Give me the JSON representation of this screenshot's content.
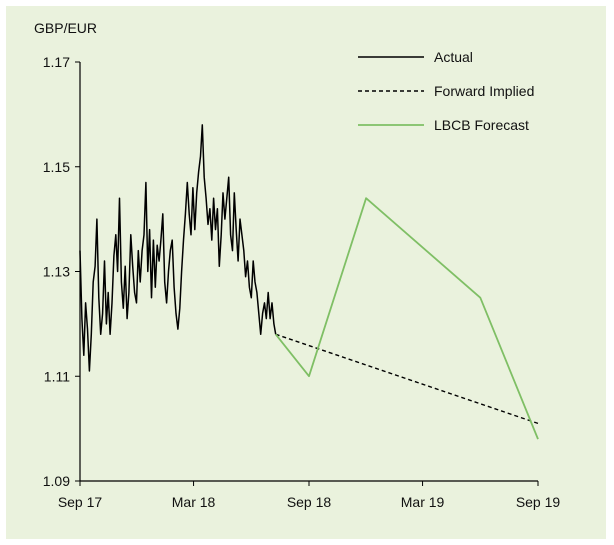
{
  "chart_data": {
    "type": "line",
    "title": "",
    "ylabel": "GBP/EUR",
    "xlabel": "",
    "ylim": [
      1.09,
      1.17
    ],
    "yticks": [
      "1.09",
      "1.11",
      "1.13",
      "1.15",
      "1.17"
    ],
    "xlim": [
      "2017-09-01",
      "2019-09-01"
    ],
    "xticks": [
      {
        "date": "2017-09-01",
        "label": "Sep 17"
      },
      {
        "date": "2018-03-01",
        "label": "Mar 18"
      },
      {
        "date": "2018-09-01",
        "label": "Sep 18"
      },
      {
        "date": "2019-03-01",
        "label": "Mar 19"
      },
      {
        "date": "2019-09-01",
        "label": "Sep 19"
      }
    ],
    "grid": false,
    "legend_position": "top-right",
    "series": [
      {
        "name": "Actual",
        "style": "solid",
        "color": "#000000",
        "points": [
          [
            "2017-09-01",
            1.134
          ],
          [
            "2017-09-04",
            1.121
          ],
          [
            "2017-09-07",
            1.114
          ],
          [
            "2017-09-10",
            1.124
          ],
          [
            "2017-09-13",
            1.119
          ],
          [
            "2017-09-16",
            1.111
          ],
          [
            "2017-09-19",
            1.118
          ],
          [
            "2017-09-22",
            1.128
          ],
          [
            "2017-09-25",
            1.131
          ],
          [
            "2017-09-28",
            1.14
          ],
          [
            "2017-10-01",
            1.125
          ],
          [
            "2017-10-04",
            1.118
          ],
          [
            "2017-10-07",
            1.122
          ],
          [
            "2017-10-10",
            1.132
          ],
          [
            "2017-10-13",
            1.12
          ],
          [
            "2017-10-16",
            1.126
          ],
          [
            "2017-10-19",
            1.118
          ],
          [
            "2017-10-22",
            1.124
          ],
          [
            "2017-10-25",
            1.133
          ],
          [
            "2017-10-28",
            1.137
          ],
          [
            "2017-10-31",
            1.13
          ],
          [
            "2017-11-03",
            1.144
          ],
          [
            "2017-11-06",
            1.128
          ],
          [
            "2017-11-09",
            1.123
          ],
          [
            "2017-11-12",
            1.131
          ],
          [
            "2017-11-15",
            1.121
          ],
          [
            "2017-11-18",
            1.126
          ],
          [
            "2017-11-21",
            1.137
          ],
          [
            "2017-11-24",
            1.131
          ],
          [
            "2017-11-27",
            1.126
          ],
          [
            "2017-11-30",
            1.124
          ],
          [
            "2017-12-03",
            1.134
          ],
          [
            "2017-12-06",
            1.128
          ],
          [
            "2017-12-09",
            1.134
          ],
          [
            "2017-12-12",
            1.137
          ],
          [
            "2017-12-15",
            1.147
          ],
          [
            "2017-12-18",
            1.13
          ],
          [
            "2017-12-21",
            1.138
          ],
          [
            "2017-12-24",
            1.125
          ],
          [
            "2017-12-27",
            1.136
          ],
          [
            "2017-12-30",
            1.127
          ],
          [
            "2018-01-02",
            1.135
          ],
          [
            "2018-01-05",
            1.132
          ],
          [
            "2018-01-08",
            1.136
          ],
          [
            "2018-01-11",
            1.141
          ],
          [
            "2018-01-14",
            1.128
          ],
          [
            "2018-01-17",
            1.124
          ],
          [
            "2018-01-20",
            1.13
          ],
          [
            "2018-01-23",
            1.134
          ],
          [
            "2018-01-26",
            1.136
          ],
          [
            "2018-01-29",
            1.127
          ],
          [
            "2018-02-01",
            1.122
          ],
          [
            "2018-02-04",
            1.119
          ],
          [
            "2018-02-07",
            1.123
          ],
          [
            "2018-02-10",
            1.13
          ],
          [
            "2018-02-13",
            1.136
          ],
          [
            "2018-02-16",
            1.141
          ],
          [
            "2018-02-19",
            1.147
          ],
          [
            "2018-02-22",
            1.141
          ],
          [
            "2018-02-25",
            1.137
          ],
          [
            "2018-02-28",
            1.146
          ],
          [
            "2018-03-03",
            1.138
          ],
          [
            "2018-03-06",
            1.145
          ],
          [
            "2018-03-09",
            1.149
          ],
          [
            "2018-03-12",
            1.152
          ],
          [
            "2018-03-15",
            1.158
          ],
          [
            "2018-03-18",
            1.148
          ],
          [
            "2018-03-21",
            1.144
          ],
          [
            "2018-03-24",
            1.139
          ],
          [
            "2018-03-27",
            1.142
          ],
          [
            "2018-03-30",
            1.136
          ],
          [
            "2018-04-02",
            1.144
          ],
          [
            "2018-04-05",
            1.138
          ],
          [
            "2018-04-08",
            1.142
          ],
          [
            "2018-04-11",
            1.131
          ],
          [
            "2018-04-14",
            1.137
          ],
          [
            "2018-04-17",
            1.145
          ],
          [
            "2018-04-20",
            1.14
          ],
          [
            "2018-04-23",
            1.144
          ],
          [
            "2018-04-26",
            1.148
          ],
          [
            "2018-04-29",
            1.137
          ],
          [
            "2018-05-02",
            1.134
          ],
          [
            "2018-05-05",
            1.145
          ],
          [
            "2018-05-08",
            1.138
          ],
          [
            "2018-05-11",
            1.132
          ],
          [
            "2018-05-14",
            1.14
          ],
          [
            "2018-05-17",
            1.137
          ],
          [
            "2018-05-20",
            1.134
          ],
          [
            "2018-05-23",
            1.129
          ],
          [
            "2018-05-26",
            1.132
          ],
          [
            "2018-05-29",
            1.127
          ],
          [
            "2018-06-01",
            1.125
          ],
          [
            "2018-06-04",
            1.132
          ],
          [
            "2018-06-07",
            1.128
          ],
          [
            "2018-06-10",
            1.126
          ],
          [
            "2018-06-13",
            1.122
          ],
          [
            "2018-06-16",
            1.118
          ],
          [
            "2018-06-19",
            1.122
          ],
          [
            "2018-06-22",
            1.124
          ],
          [
            "2018-06-25",
            1.121
          ],
          [
            "2018-06-28",
            1.126
          ],
          [
            "2018-07-01",
            1.121
          ],
          [
            "2018-07-04",
            1.124
          ],
          [
            "2018-07-07",
            1.12
          ],
          [
            "2018-07-10",
            1.118
          ]
        ]
      },
      {
        "name": "Forward Implied",
        "style": "dashed",
        "color": "#000000",
        "points": [
          [
            "2018-07-10",
            1.118
          ],
          [
            "2019-09-01",
            1.101
          ]
        ]
      },
      {
        "name": "LBCB Forecast",
        "style": "solid",
        "color": "#7fbf65",
        "points": [
          [
            "2018-07-10",
            1.118
          ],
          [
            "2018-09-01",
            1.11
          ],
          [
            "2018-12-01",
            1.144
          ],
          [
            "2019-06-01",
            1.125
          ],
          [
            "2019-09-01",
            1.098
          ]
        ]
      }
    ]
  }
}
